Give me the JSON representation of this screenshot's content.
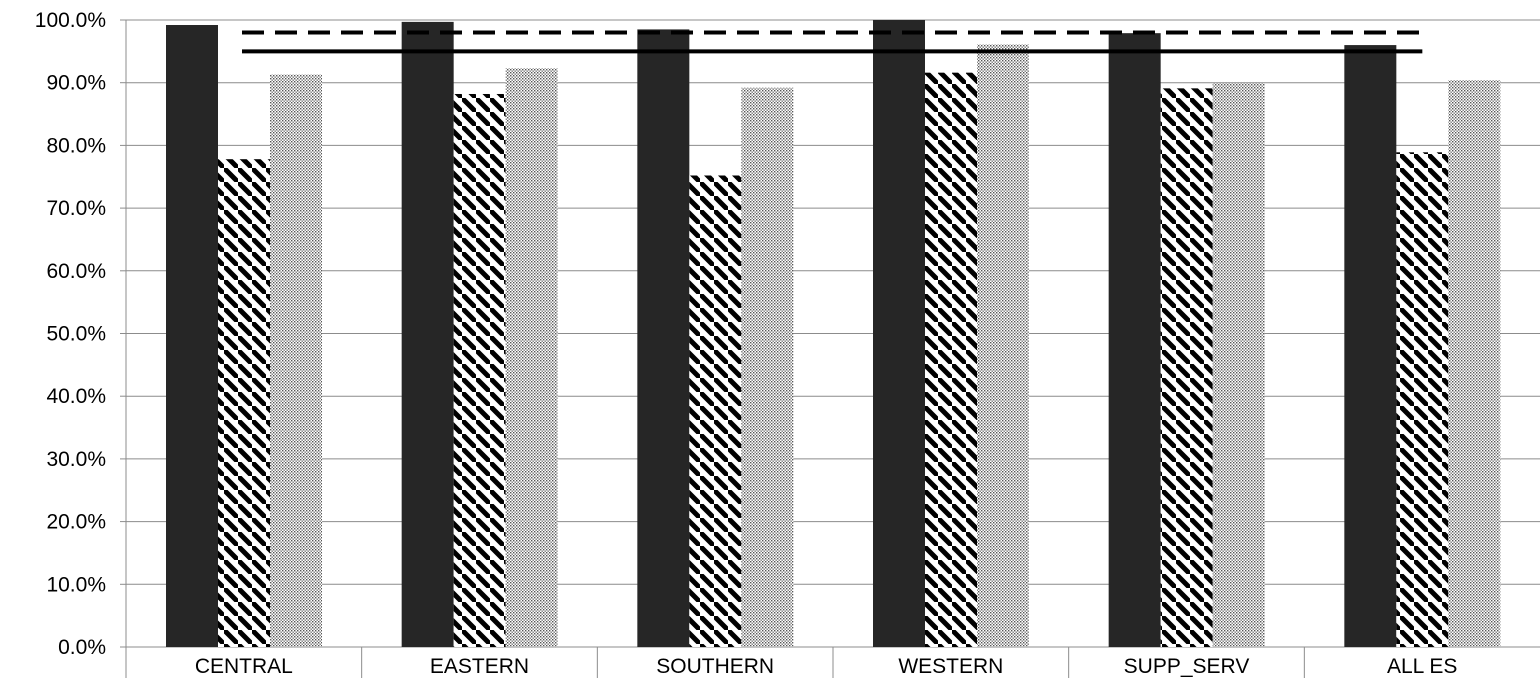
{
  "chart_data": {
    "type": "bar",
    "title": "",
    "xlabel": "",
    "ylabel": "",
    "categories": [
      "CENTRAL",
      "EASTERN",
      "SOUTHERN",
      "WESTERN",
      "SUPP_SERV",
      "ALL ES"
    ],
    "series": [
      {
        "fill": "solid",
        "color": "#262626",
        "values": [
          99.2,
          99.7,
          98.5,
          100.0,
          97.9,
          96.0
        ]
      },
      {
        "fill": "diagonal-stripes",
        "color": "#000000",
        "values": [
          77.8,
          88.2,
          75.2,
          91.6,
          89.1,
          78.9
        ]
      },
      {
        "fill": "dots",
        "color": "#555555",
        "values": [
          91.3,
          92.3,
          89.2,
          96.1,
          89.9,
          90.4
        ]
      }
    ],
    "reference_lines": [
      {
        "style": "dashed",
        "value": 98.0
      },
      {
        "style": "solid",
        "value": 95.0
      }
    ],
    "ylim": [
      0,
      100
    ],
    "yticks": [
      "0.0%",
      "10.0%",
      "20.0%",
      "30.0%",
      "40.0%",
      "50.0%",
      "60.0%",
      "70.0%",
      "80.0%",
      "90.0%",
      "100.0%"
    ],
    "grid": true,
    "legend": "none"
  }
}
